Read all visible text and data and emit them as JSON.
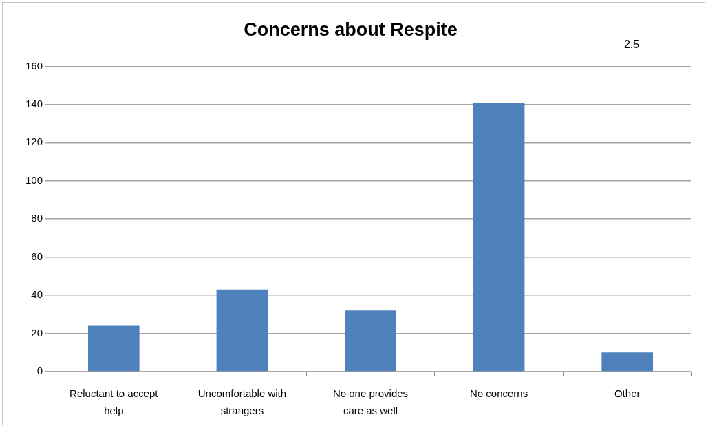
{
  "chart_data": {
    "type": "bar",
    "title": "Concerns about Respite",
    "categories": [
      "Reluctant to accept help",
      "Uncomfortable with strangers",
      "No one provides care as well",
      "No concerns",
      "Other"
    ],
    "values": [
      24,
      43,
      32,
      141,
      10
    ],
    "color": "#4f81bd",
    "ylim": [
      0,
      160
    ],
    "yticks": [
      0,
      20,
      40,
      60,
      80,
      100,
      120,
      140,
      160
    ],
    "grid": "y",
    "annotations": [
      "2.5"
    ]
  }
}
